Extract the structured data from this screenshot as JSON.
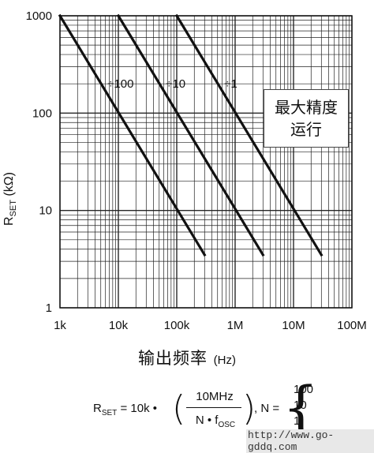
{
  "chart_data": {
    "type": "line",
    "title": "",
    "xlabel": "输出频率",
    "xlabel_unit": "(Hz)",
    "ylabel_main": "R",
    "ylabel_sub": "SET",
    "ylabel_unit": "(kΩ)",
    "x_scale": "log",
    "y_scale": "log",
    "xlim": [
      1000,
      100000000
    ],
    "ylim": [
      1,
      1000
    ],
    "x_ticks": [
      1000,
      10000,
      100000,
      1000000,
      10000000,
      100000000
    ],
    "x_tick_labels": [
      "1k",
      "10k",
      "100k",
      "1M",
      "10M",
      "100M"
    ],
    "y_ticks": [
      1,
      10,
      100,
      1000
    ],
    "y_tick_labels": [
      "1",
      "10",
      "100",
      "1000"
    ],
    "grid": true,
    "series": [
      {
        "name": "÷100",
        "x": [
          1000,
          300000
        ],
        "y": [
          1000,
          3.5
        ]
      },
      {
        "name": "÷10",
        "x": [
          10000,
          3000000
        ],
        "y": [
          1000,
          3.5
        ]
      },
      {
        "name": "÷1",
        "x": [
          100000,
          30000000
        ],
        "y": [
          1000,
          3.5
        ]
      }
    ],
    "annotation_lines": [
      "最大精度",
      "运行"
    ]
  },
  "formula": {
    "lhs_main": "R",
    "lhs_sub": "SET",
    "lhs_rest": " = 10k •",
    "numerator": "10MHz",
    "denominator_main": "N • f",
    "denominator_sub": "OSC",
    "n_label": ", N =",
    "n_options": [
      "100",
      "10",
      "1"
    ]
  },
  "watermark": "http://www.go-gddq.com"
}
